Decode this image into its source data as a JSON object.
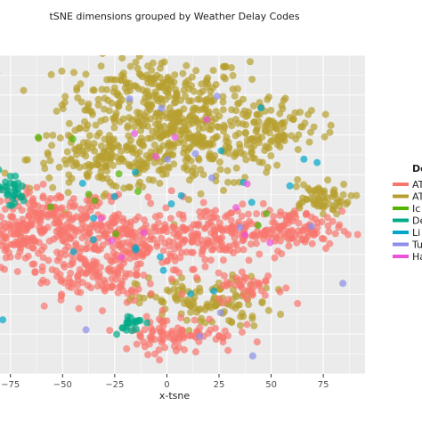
{
  "chart_data": {
    "type": "scatter",
    "title": "tSNE dimensions grouped by Weather Delay Codes",
    "xlabel": "x-tsne",
    "ylabel": "",
    "xlim": [
      -80,
      95
    ],
    "ylim": [
      -100,
      100
    ],
    "x_ticks": [
      -75,
      -50,
      -25,
      0,
      25,
      50,
      75
    ],
    "x_tick_labels": [
      "−75",
      "−50",
      "−25",
      "0",
      "25",
      "50",
      "75"
    ],
    "grid": true,
    "legend_position": "right",
    "legend_title": "De",
    "series": [
      {
        "name": "AT",
        "color": "#f8766d"
      },
      {
        "name": "AT",
        "color": "#b79f2f"
      },
      {
        "name": "Ic",
        "color": "#53b400"
      },
      {
        "name": "De",
        "color": "#00a987"
      },
      {
        "name": "Li",
        "color": "#00a6c9"
      },
      {
        "name": "Tu",
        "color": "#8c8ee8"
      },
      {
        "name": "Ha",
        "color": "#ec53d9"
      }
    ],
    "clusters": [
      {
        "series": 1,
        "cx": -5,
        "cy": 75,
        "sx": 22,
        "sy": 12,
        "n": 260
      },
      {
        "series": 1,
        "cx": -30,
        "cy": 35,
        "sx": 18,
        "sy": 10,
        "n": 170
      },
      {
        "series": 1,
        "cx": 15,
        "cy": 42,
        "sx": 20,
        "sy": 12,
        "n": 190
      },
      {
        "series": 1,
        "cx": 50,
        "cy": 55,
        "sx": 12,
        "sy": 10,
        "n": 100
      },
      {
        "series": 1,
        "cx": 72,
        "cy": 10,
        "sx": 8,
        "sy": 5,
        "n": 60
      },
      {
        "series": 1,
        "cx": 18,
        "cy": -55,
        "sx": 16,
        "sy": 8,
        "n": 120
      },
      {
        "series": 1,
        "cx": 5,
        "cy": 55,
        "sx": 8,
        "sy": 8,
        "n": 40
      },
      {
        "series": 0,
        "cx": -55,
        "cy": -5,
        "sx": 18,
        "sy": 10,
        "n": 230
      },
      {
        "series": 0,
        "cx": -15,
        "cy": -20,
        "sx": 20,
        "sy": 12,
        "n": 230
      },
      {
        "series": 0,
        "cx": 25,
        "cy": -10,
        "sx": 16,
        "sy": 8,
        "n": 130
      },
      {
        "series": 0,
        "cx": 60,
        "cy": -10,
        "sx": 12,
        "sy": 6,
        "n": 100
      },
      {
        "series": 0,
        "cx": -75,
        "cy": -15,
        "sx": 6,
        "sy": 5,
        "n": 50
      },
      {
        "series": 0,
        "cx": -35,
        "cy": -40,
        "sx": 14,
        "sy": 8,
        "n": 90
      },
      {
        "series": 0,
        "cx": 40,
        "cy": -45,
        "sx": 8,
        "sy": 5,
        "n": 40
      },
      {
        "series": 0,
        "cx": 5,
        "cy": -75,
        "sx": 14,
        "sy": 6,
        "n": 90
      },
      {
        "series": 3,
        "cx": -75,
        "cy": 15,
        "sx": 4,
        "sy": 6,
        "n": 30
      },
      {
        "series": 3,
        "cx": -18,
        "cy": -68,
        "sx": 4,
        "sy": 3,
        "n": 20
      },
      {
        "series": 4,
        "cx": -5,
        "cy": 5,
        "sx": 40,
        "sy": 40,
        "n": 25
      },
      {
        "series": 5,
        "cx": 0,
        "cy": 0,
        "sx": 40,
        "sy": 40,
        "n": 15
      },
      {
        "series": 6,
        "cx": 10,
        "cy": 10,
        "sx": 35,
        "sy": 30,
        "n": 12
      },
      {
        "series": 2,
        "cx": 0,
        "cy": 10,
        "sx": 35,
        "sy": 30,
        "n": 10
      }
    ]
  }
}
